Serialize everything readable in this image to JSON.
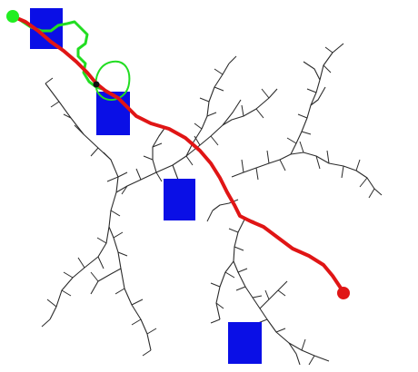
{
  "scene": {
    "type": "path-planning-tree",
    "colors": {
      "background": "#ffffff",
      "tree_edges": "#2b2b2b",
      "obstacles": "#0a0fe6",
      "planned_path": "#e01515",
      "executed_trajectory": "#22dd22",
      "start": "#22ee22",
      "goal": "#e01515",
      "vehicle_marker": "#111111"
    },
    "obstacle_count": 4,
    "markers": [
      "start-marker",
      "goal-marker",
      "vehicle-marker"
    ]
  }
}
